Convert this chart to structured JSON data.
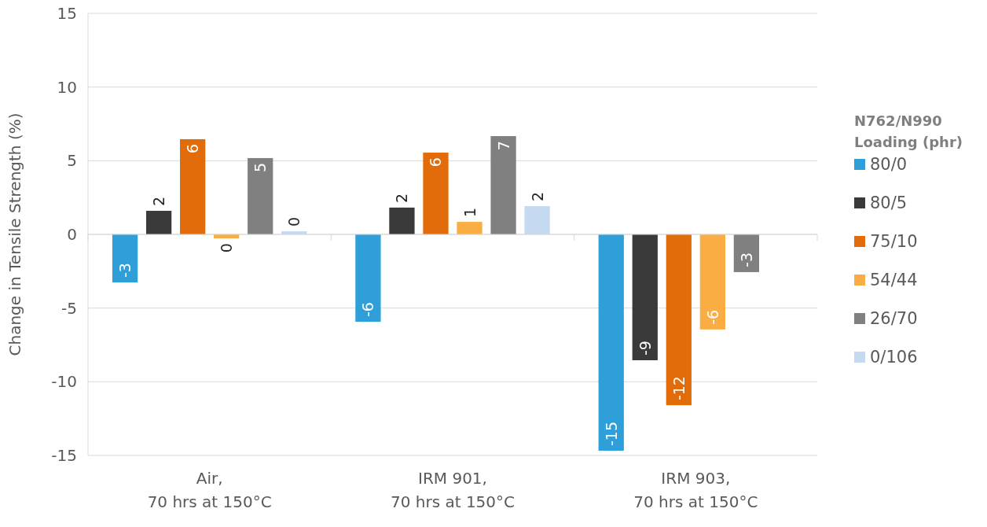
{
  "chart_data": {
    "type": "bar",
    "ylabel": "Change in Tensile Strength (%)",
    "legend_title": "N762/N990\nLoading (phr)",
    "categories": [
      "Air,\n70 hrs at 150°C",
      "IRM 901,\n70 hrs at 150°C",
      "IRM 903,\n70 hrs at 150°C"
    ],
    "series": [
      {
        "name": "80/0",
        "color": "#2e9fd9",
        "values": [
          -3.26,
          -5.93,
          -14.68
        ],
        "value_labels": [
          "-3",
          "-6",
          "-15"
        ]
      },
      {
        "name": "80/5",
        "color": "#3a3a3a",
        "values": [
          1.6,
          1.82,
          -8.54
        ],
        "value_labels": [
          "2",
          "2",
          "-9"
        ]
      },
      {
        "name": "75/10",
        "color": "#e36c0a",
        "values": [
          6.46,
          5.55,
          -11.59
        ],
        "value_labels": [
          "6",
          "6",
          "-12"
        ]
      },
      {
        "name": "54/44",
        "color": "#f9ad42",
        "values": [
          -0.27,
          0.85,
          -6.45
        ],
        "value_labels": [
          "0",
          "1",
          "-6"
        ]
      },
      {
        "name": "26/70",
        "color": "#808080",
        "values": [
          5.18,
          6.67,
          -2.56
        ],
        "value_labels": [
          "5",
          "7",
          "-3"
        ]
      },
      {
        "name": "0/106",
        "color": "#c5d9f0",
        "values": [
          0.21,
          1.92,
          null
        ],
        "value_labels": [
          "0",
          "2",
          null
        ]
      }
    ],
    "ylim": [
      -15,
      15
    ],
    "yticks": [
      -15,
      -10,
      -5,
      0,
      5,
      10,
      15
    ],
    "grid": "y",
    "legend": "right"
  }
}
